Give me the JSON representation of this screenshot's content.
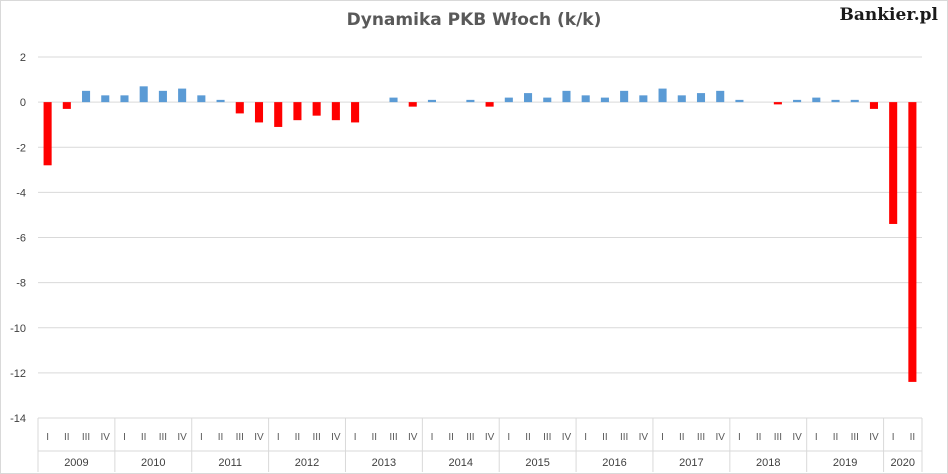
{
  "brand": "Bankier.pl",
  "chart_data": {
    "type": "bar",
    "title": "Dynamika PKB Włoch (k/k)",
    "xlabel": "",
    "ylabel": "",
    "ylim": [
      -14,
      2
    ],
    "yticks": [
      2,
      0,
      -2,
      -4,
      -6,
      -8,
      -10,
      -12,
      -14
    ],
    "grid": true,
    "legend": "none",
    "colors": {
      "positive": "#5b9bd5",
      "negative": "#ff0000"
    },
    "categories": [
      "2009 I",
      "2009 II",
      "2009 III",
      "2009 IV",
      "2010 I",
      "2010 II",
      "2010 III",
      "2010 IV",
      "2011 I",
      "2011 II",
      "2011 III",
      "2011 IV",
      "2012 I",
      "2012 II",
      "2012 III",
      "2012 IV",
      "2013 I",
      "2013 II",
      "2013 III",
      "2013 IV",
      "2014 I",
      "2014 II",
      "2014 III",
      "2014 IV",
      "2015 I",
      "2015 II",
      "2015 III",
      "2015 IV",
      "2016 I",
      "2016 II",
      "2016 III",
      "2016 IV",
      "2017 I",
      "2017 II",
      "2017 III",
      "2017 IV",
      "2018 I",
      "2018 II",
      "2018 III",
      "2018 IV",
      "2019 I",
      "2019 II",
      "2019 III",
      "2019 IV",
      "2020 I",
      "2020 II"
    ],
    "quarter_labels": [
      "I",
      "II",
      "III",
      "IV",
      "I",
      "II",
      "III",
      "IV",
      "I",
      "II",
      "III",
      "IV",
      "I",
      "II",
      "III",
      "IV",
      "I",
      "II",
      "III",
      "IV",
      "I",
      "II",
      "III",
      "IV",
      "I",
      "II",
      "III",
      "IV",
      "I",
      "II",
      "III",
      "IV",
      "I",
      "II",
      "III",
      "IV",
      "I",
      "II",
      "III",
      "IV",
      "I",
      "II",
      "III",
      "IV",
      "I",
      "II"
    ],
    "years": [
      {
        "label": "2009",
        "quarters": 4
      },
      {
        "label": "2010",
        "quarters": 4
      },
      {
        "label": "2011",
        "quarters": 4
      },
      {
        "label": "2012",
        "quarters": 4
      },
      {
        "label": "2013",
        "quarters": 4
      },
      {
        "label": "2014",
        "quarters": 4
      },
      {
        "label": "2015",
        "quarters": 4
      },
      {
        "label": "2016",
        "quarters": 4
      },
      {
        "label": "2017",
        "quarters": 4
      },
      {
        "label": "2018",
        "quarters": 4
      },
      {
        "label": "2019",
        "quarters": 4
      },
      {
        "label": "2020",
        "quarters": 2
      }
    ],
    "values": [
      -2.8,
      -0.3,
      0.5,
      0.3,
      0.3,
      0.7,
      0.5,
      0.6,
      0.3,
      0.1,
      -0.5,
      -0.9,
      -1.1,
      -0.8,
      -0.6,
      -0.8,
      -0.9,
      0.0,
      0.2,
      -0.2,
      0.1,
      0.0,
      0.1,
      -0.2,
      0.2,
      0.4,
      0.2,
      0.5,
      0.3,
      0.2,
      0.5,
      0.3,
      0.6,
      0.3,
      0.4,
      0.5,
      0.1,
      0.0,
      -0.1,
      0.1,
      0.2,
      0.1,
      0.1,
      -0.3,
      -5.4,
      -12.4
    ]
  }
}
